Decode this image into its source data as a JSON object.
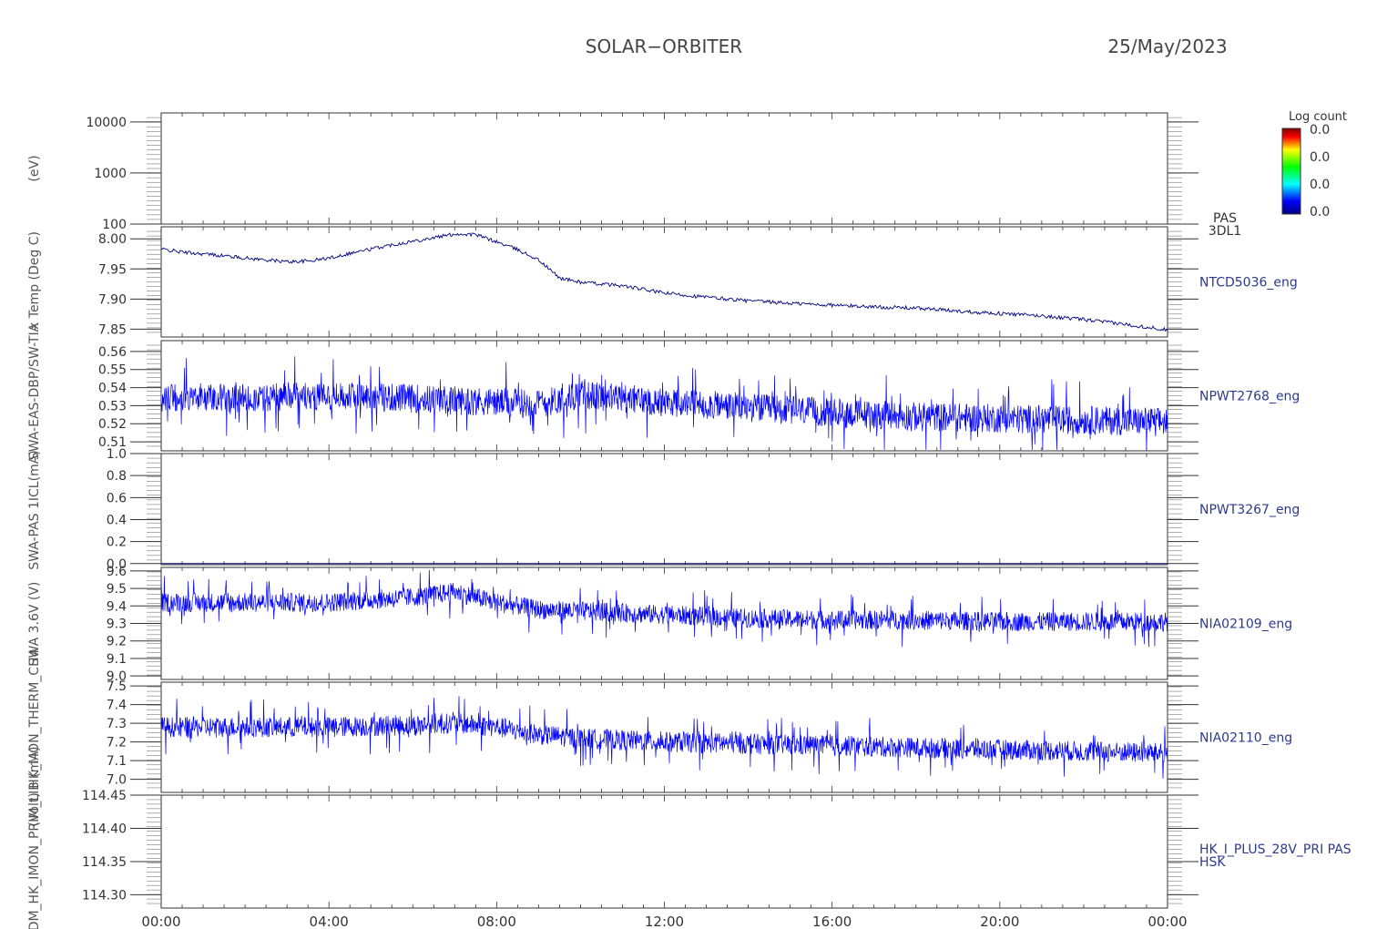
{
  "header": {
    "title": "SOLAR−ORBITER",
    "date": "25/May/2023"
  },
  "colorbar": {
    "title": "Log count",
    "labels": [
      "0.0",
      "0.0",
      "0.0",
      "0.0"
    ]
  },
  "x_ticks": [
    "00:00",
    "04:00",
    "08:00",
    "12:00",
    "16:00",
    "20:00",
    "00:00"
  ],
  "ylabels_overlapped": [
    "(eV)",
    "x Temp (Deg C)",
    "SWA-EAS-DBP/SW-TIA",
    "SWA-PAS 1ICL(mA)",
    "SWA 3.6V (V)",
    "(Volt) HK_MON_THERM_CH4",
    "RPDM_HK_IMON_PRIM_LIB (mA)"
  ],
  "chart_data": [
    {
      "type": "heatmap",
      "id": "pas-3dl1",
      "right_label": "PAS\n3DL1",
      "right_label_lines": [
        "PAS",
        "3DL1"
      ],
      "yscale": "log",
      "ylim": [
        100,
        15000
      ],
      "yticks": [
        10000,
        1000,
        100
      ],
      "ytick_labels": [
        "10000",
        "1000",
        "100"
      ],
      "x_range": [
        "00:00",
        "24:00"
      ],
      "values": []
    },
    {
      "type": "line",
      "id": "ntcd5036",
      "right_label": "NTCD5036_eng",
      "ylim": [
        7.837,
        8.02
      ],
      "yticks": [
        8.0,
        7.95,
        7.9,
        7.85
      ],
      "ytick_labels": [
        "8.00",
        "7.95",
        "7.90",
        "7.85"
      ],
      "series": [
        {
          "x_hours": [
            0,
            0.5,
            1,
            1.5,
            2,
            2.5,
            3,
            3.5,
            4,
            4.5,
            5,
            5.5,
            6,
            6.5,
            7,
            7.5,
            8,
            8.5,
            9,
            9.5,
            10,
            11,
            12,
            13,
            14,
            15,
            16,
            17,
            18,
            19,
            20,
            21,
            22,
            23,
            24
          ],
          "values": [
            7.983,
            7.978,
            7.975,
            7.972,
            7.968,
            7.965,
            7.962,
            7.963,
            7.968,
            7.976,
            7.983,
            7.99,
            7.996,
            8.002,
            8.008,
            8.007,
            7.995,
            7.982,
            7.965,
            7.935,
            7.928,
            7.922,
            7.91,
            7.903,
            7.897,
            7.893,
            7.89,
            7.887,
            7.885,
            7.88,
            7.876,
            7.872,
            7.866,
            7.858,
            7.849
          ]
        }
      ]
    },
    {
      "type": "line",
      "id": "npwt2768",
      "right_label": "NPWT2768_eng",
      "ylim": [
        0.505,
        0.566
      ],
      "yticks": [
        0.56,
        0.55,
        0.54,
        0.53,
        0.52,
        0.51
      ],
      "ytick_labels": [
        "0.56",
        "0.55",
        "0.54",
        "0.53",
        "0.52",
        "0.51"
      ],
      "series": [
        {
          "x_hours": [
            0,
            1,
            2,
            3,
            4,
            5,
            6,
            7,
            8,
            9,
            10,
            12,
            14,
            16,
            18,
            20,
            22,
            24
          ],
          "values": [
            0.534,
            0.535,
            0.534,
            0.535,
            0.535,
            0.535,
            0.534,
            0.533,
            0.532,
            0.531,
            0.536,
            0.532,
            0.529,
            0.526,
            0.524,
            0.523,
            0.522,
            0.521
          ]
        }
      ]
    },
    {
      "type": "line",
      "id": "npwt3267",
      "right_label": "NPWT3267_eng",
      "ylim": [
        -0.01,
        1.0
      ],
      "yticks": [
        1.0,
        0.8,
        0.6,
        0.4,
        0.2,
        0.0
      ],
      "ytick_labels": [
        "1.0",
        "0.8",
        "0.6",
        "0.4",
        "0.2",
        "0.0"
      ],
      "series": [
        {
          "x_hours": [
            0,
            24
          ],
          "values": [
            0.0,
            0.0
          ]
        }
      ]
    },
    {
      "type": "line",
      "id": "nia02109",
      "right_label": "NIA02109_eng",
      "ylim": [
        8.98,
        9.62
      ],
      "yticks": [
        9.6,
        9.5,
        9.4,
        9.3,
        9.2,
        9.1,
        9.0
      ],
      "ytick_labels": [
        "9.6",
        "9.5",
        "9.4",
        "9.3",
        "9.2",
        "9.1",
        "9.0"
      ],
      "series": [
        {
          "x_hours": [
            0,
            2,
            4,
            6,
            7,
            8,
            9,
            10,
            12,
            14,
            16,
            18,
            20,
            22,
            24
          ],
          "values": [
            9.42,
            9.42,
            9.42,
            9.45,
            9.48,
            9.42,
            9.38,
            9.37,
            9.35,
            9.33,
            9.32,
            9.32,
            9.31,
            9.31,
            9.31
          ]
        }
      ]
    },
    {
      "type": "line",
      "id": "nia02110",
      "right_label": "NIA02110_eng",
      "ylim": [
        6.93,
        7.52
      ],
      "yticks": [
        7.5,
        7.4,
        7.3,
        7.2,
        7.1,
        7.0
      ],
      "ytick_labels": [
        "7.5",
        "7.4",
        "7.3",
        "7.2",
        "7.1",
        "7.0"
      ],
      "series": [
        {
          "x_hours": [
            0,
            2,
            4,
            6,
            7,
            8,
            9,
            10,
            12,
            14,
            16,
            18,
            20,
            22,
            24
          ],
          "values": [
            7.28,
            7.28,
            7.28,
            7.29,
            7.3,
            7.28,
            7.24,
            7.22,
            7.2,
            7.19,
            7.18,
            7.17,
            7.16,
            7.15,
            7.14
          ]
        }
      ]
    },
    {
      "type": "line",
      "id": "hk-i-plus-28v",
      "right_label": "HK_I_PLUS_28V_PRI PAS\nHSK",
      "right_label_lines": [
        "HK_I_PLUS_28V_PRI PAS",
        "HSK"
      ],
      "ylim": [
        114.28,
        114.45
      ],
      "yticks": [
        114.45,
        114.4,
        114.35,
        114.3
      ],
      "ytick_labels": [
        "114.45",
        "114.40",
        "114.35",
        "114.30"
      ],
      "series": []
    }
  ]
}
